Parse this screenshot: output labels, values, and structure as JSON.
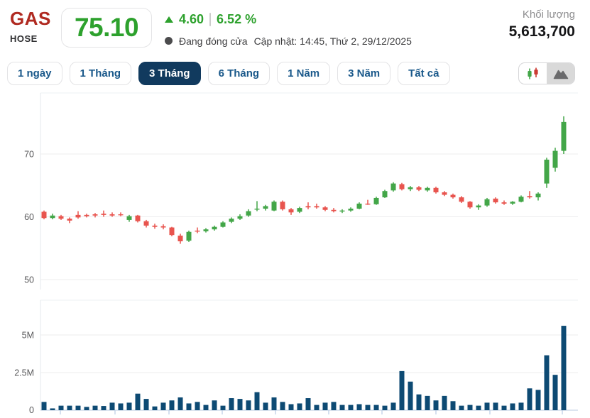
{
  "header": {
    "symbol": "GAS",
    "exchange": "HOSE",
    "price": "75.10",
    "change": "4.60",
    "change_percent": "6.52 %",
    "market_status": "Đang đóng cửa",
    "updated": "Cập nhật: 14:45, Thứ 2, 29/12/2025",
    "volume_label": "Khối lượng",
    "volume_value": "5,613,700"
  },
  "toolbar": {
    "ranges": [
      "1 ngày",
      "1 Tháng",
      "3 Tháng",
      "6 Tháng",
      "1 Năm",
      "3 Năm",
      "Tất cả"
    ],
    "active_range": "3 Tháng",
    "chart_type_options": [
      "candlestick",
      "area"
    ],
    "highlighted_chart_type": "area"
  },
  "colors": {
    "accent_green": "#2da12d",
    "brand_red": "#b02a21",
    "tab_text_navy": "#19588a",
    "tab_selected_bg": "#113a5e",
    "candle_up": "#43a648",
    "candle_down": "#e8544e",
    "volume_bar": "#0d4a73",
    "gridline": "#ececee",
    "axis_line": "#e5e8ec",
    "baseline": "#c7d5e8",
    "tick": "#b9cce4",
    "mountain_icon": "#6a6a6c"
  },
  "chart_data": {
    "type": "candlestick+volume",
    "title": "GAS 3-month daily price chart",
    "legend_position": "none",
    "grid": true,
    "price_axis": {
      "tick_labels": [
        "70",
        "60",
        "50"
      ],
      "tick_values": [
        70,
        60,
        50
      ],
      "visible_range": [
        48.5,
        79.5
      ]
    },
    "volume_axis": {
      "tick_labels": [
        "5M",
        "2.5M",
        "0"
      ],
      "tick_values_m": [
        5,
        2.5,
        0
      ],
      "visible_range_m": [
        0,
        7.3
      ]
    },
    "candles_ohlc": [
      [
        60.8,
        61.0,
        59.6,
        59.8
      ],
      [
        59.8,
        60.5,
        59.6,
        60.2
      ],
      [
        60.1,
        60.3,
        59.5,
        59.7
      ],
      [
        59.7,
        59.9,
        59.0,
        59.4
      ],
      [
        60.3,
        60.9,
        59.7,
        59.9
      ],
      [
        60.3,
        60.5,
        59.9,
        60.1
      ],
      [
        60.4,
        60.6,
        59.9,
        60.2
      ],
      [
        60.5,
        61.0,
        60.0,
        60.3
      ],
      [
        60.4,
        60.7,
        60.0,
        60.2
      ],
      [
        60.4,
        60.7,
        60.1,
        60.3
      ],
      [
        59.5,
        60.3,
        59.2,
        60.1
      ],
      [
        60.2,
        60.3,
        59.1,
        59.3
      ],
      [
        59.3,
        59.5,
        58.3,
        58.6
      ],
      [
        58.6,
        58.9,
        58.1,
        58.4
      ],
      [
        58.5,
        58.8,
        58.0,
        58.3
      ],
      [
        58.3,
        58.4,
        56.9,
        57.1
      ],
      [
        57.0,
        57.3,
        55.7,
        56.1
      ],
      [
        56.2,
        57.8,
        56.0,
        57.6
      ],
      [
        57.8,
        58.3,
        57.4,
        57.7
      ],
      [
        57.7,
        58.2,
        57.5,
        58.0
      ],
      [
        58.0,
        58.6,
        57.8,
        58.4
      ],
      [
        58.4,
        59.3,
        58.3,
        59.1
      ],
      [
        59.2,
        59.9,
        59.0,
        59.7
      ],
      [
        59.7,
        60.4,
        59.5,
        60.1
      ],
      [
        60.2,
        61.2,
        60.0,
        60.9
      ],
      [
        61.2,
        62.5,
        60.9,
        61.3
      ],
      [
        61.3,
        61.9,
        61.0,
        61.7
      ],
      [
        61.0,
        62.6,
        60.9,
        62.4
      ],
      [
        62.4,
        62.6,
        61.0,
        61.2
      ],
      [
        61.2,
        61.4,
        60.3,
        60.7
      ],
      [
        60.8,
        61.6,
        60.6,
        61.4
      ],
      [
        61.7,
        62.3,
        61.2,
        61.5
      ],
      [
        61.7,
        62.1,
        61.3,
        61.5
      ],
      [
        61.5,
        61.7,
        60.9,
        61.1
      ],
      [
        61.1,
        61.4,
        60.7,
        60.9
      ],
      [
        60.9,
        61.2,
        60.6,
        61.0
      ],
      [
        61.0,
        61.5,
        60.8,
        61.3
      ],
      [
        61.3,
        62.3,
        61.2,
        62.1
      ],
      [
        62.1,
        62.7,
        61.9,
        62.0
      ],
      [
        62.0,
        63.2,
        61.9,
        63.0
      ],
      [
        63.1,
        64.3,
        63.0,
        64.1
      ],
      [
        64.2,
        65.5,
        64.0,
        65.3
      ],
      [
        65.2,
        65.4,
        64.2,
        64.4
      ],
      [
        64.4,
        64.9,
        64.1,
        64.7
      ],
      [
        64.7,
        64.9,
        64.1,
        64.3
      ],
      [
        64.2,
        64.8,
        64.0,
        64.6
      ],
      [
        64.6,
        64.8,
        63.7,
        63.9
      ],
      [
        63.9,
        64.1,
        63.3,
        63.5
      ],
      [
        63.5,
        63.7,
        62.9,
        63.1
      ],
      [
        63.1,
        63.3,
        62.2,
        62.4
      ],
      [
        62.4,
        62.5,
        61.3,
        61.5
      ],
      [
        61.5,
        62.0,
        61.1,
        61.8
      ],
      [
        61.8,
        63.0,
        61.6,
        62.8
      ],
      [
        62.9,
        63.1,
        62.1,
        62.3
      ],
      [
        62.3,
        62.6,
        61.9,
        62.1
      ],
      [
        62.1,
        62.5,
        61.9,
        62.4
      ],
      [
        62.4,
        63.4,
        62.3,
        63.2
      ],
      [
        63.3,
        64.1,
        62.9,
        63.1
      ],
      [
        63.1,
        63.9,
        62.6,
        63.7
      ],
      [
        65.3,
        69.4,
        64.6,
        69.1
      ],
      [
        67.8,
        71.0,
        67.2,
        70.5
      ],
      [
        70.5,
        76.0,
        70.0,
        75.1
      ]
    ],
    "volumes_m": [
      0.55,
      0.12,
      0.3,
      0.3,
      0.3,
      0.22,
      0.3,
      0.28,
      0.5,
      0.45,
      0.5,
      1.1,
      0.75,
      0.25,
      0.5,
      0.65,
      0.85,
      0.45,
      0.55,
      0.35,
      0.65,
      0.3,
      0.8,
      0.75,
      0.65,
      1.2,
      0.5,
      0.85,
      0.55,
      0.4,
      0.45,
      0.8,
      0.35,
      0.5,
      0.55,
      0.35,
      0.35,
      0.4,
      0.35,
      0.35,
      0.3,
      0.5,
      2.6,
      1.9,
      1.05,
      0.95,
      0.65,
      0.95,
      0.6,
      0.3,
      0.35,
      0.3,
      0.5,
      0.5,
      0.3,
      0.45,
      0.5,
      1.45,
      1.35,
      3.65,
      2.35,
      5.61
    ]
  }
}
